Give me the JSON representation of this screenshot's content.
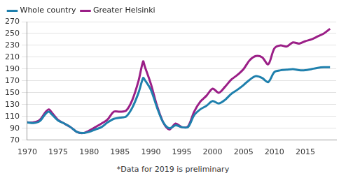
{
  "chart_data": {
    "type": "line",
    "caption": "*Data for 2019 is preliminary",
    "x": [
      1970,
      1971,
      1972,
      1973,
      1973.5,
      1974,
      1975,
      1976,
      1977,
      1978,
      1979,
      1980,
      1981,
      1982,
      1983,
      1984,
      1985,
      1986,
      1987,
      1988,
      1988.75,
      1989,
      1990,
      1991,
      1992,
      1993,
      1994,
      1995,
      1996,
      1997,
      1998,
      1999,
      2000,
      2001,
      2002,
      2003,
      2004,
      2005,
      2006,
      2007,
      2008,
      2009,
      2010,
      2011,
      2012,
      2013,
      2014,
      2015,
      2016,
      2017,
      2018,
      2019
    ],
    "series": [
      {
        "name": "Whole country",
        "color": "#1f80ad",
        "values": [
          100,
          99,
          102,
          115,
          118,
          113,
          103,
          98,
          92,
          84,
          82,
          84,
          88,
          92,
          100,
          106,
          108,
          110,
          125,
          150,
          175,
          172,
          155,
          125,
          100,
          90,
          95,
          92,
          92,
          112,
          122,
          128,
          136,
          132,
          138,
          148,
          155,
          163,
          172,
          178,
          175,
          168,
          185,
          188,
          189,
          190,
          188,
          188,
          190,
          192,
          193,
          193
        ]
      },
      {
        "name": "Greater Helsinki",
        "color": "#9b1f87",
        "values": [
          100,
          100,
          104,
          118,
          122,
          116,
          104,
          98,
          92,
          84,
          82,
          86,
          92,
          98,
          105,
          118,
          118,
          120,
          138,
          170,
          203,
          195,
          165,
          128,
          100,
          88,
          98,
          92,
          93,
          118,
          135,
          145,
          157,
          150,
          160,
          172,
          180,
          190,
          205,
          212,
          210,
          198,
          225,
          230,
          228,
          235,
          233,
          237,
          240,
          245,
          250,
          258
        ]
      }
    ],
    "xlim": [
      1970,
      2020
    ],
    "xticks": [
      1970,
      1975,
      1980,
      1985,
      1990,
      1995,
      2000,
      2005,
      2010,
      2015
    ],
    "ylim": [
      70,
      270
    ],
    "yticks": [
      70,
      90,
      110,
      130,
      150,
      170,
      190,
      210,
      230,
      250,
      270
    ],
    "grid": "y",
    "legend": "upper left"
  }
}
